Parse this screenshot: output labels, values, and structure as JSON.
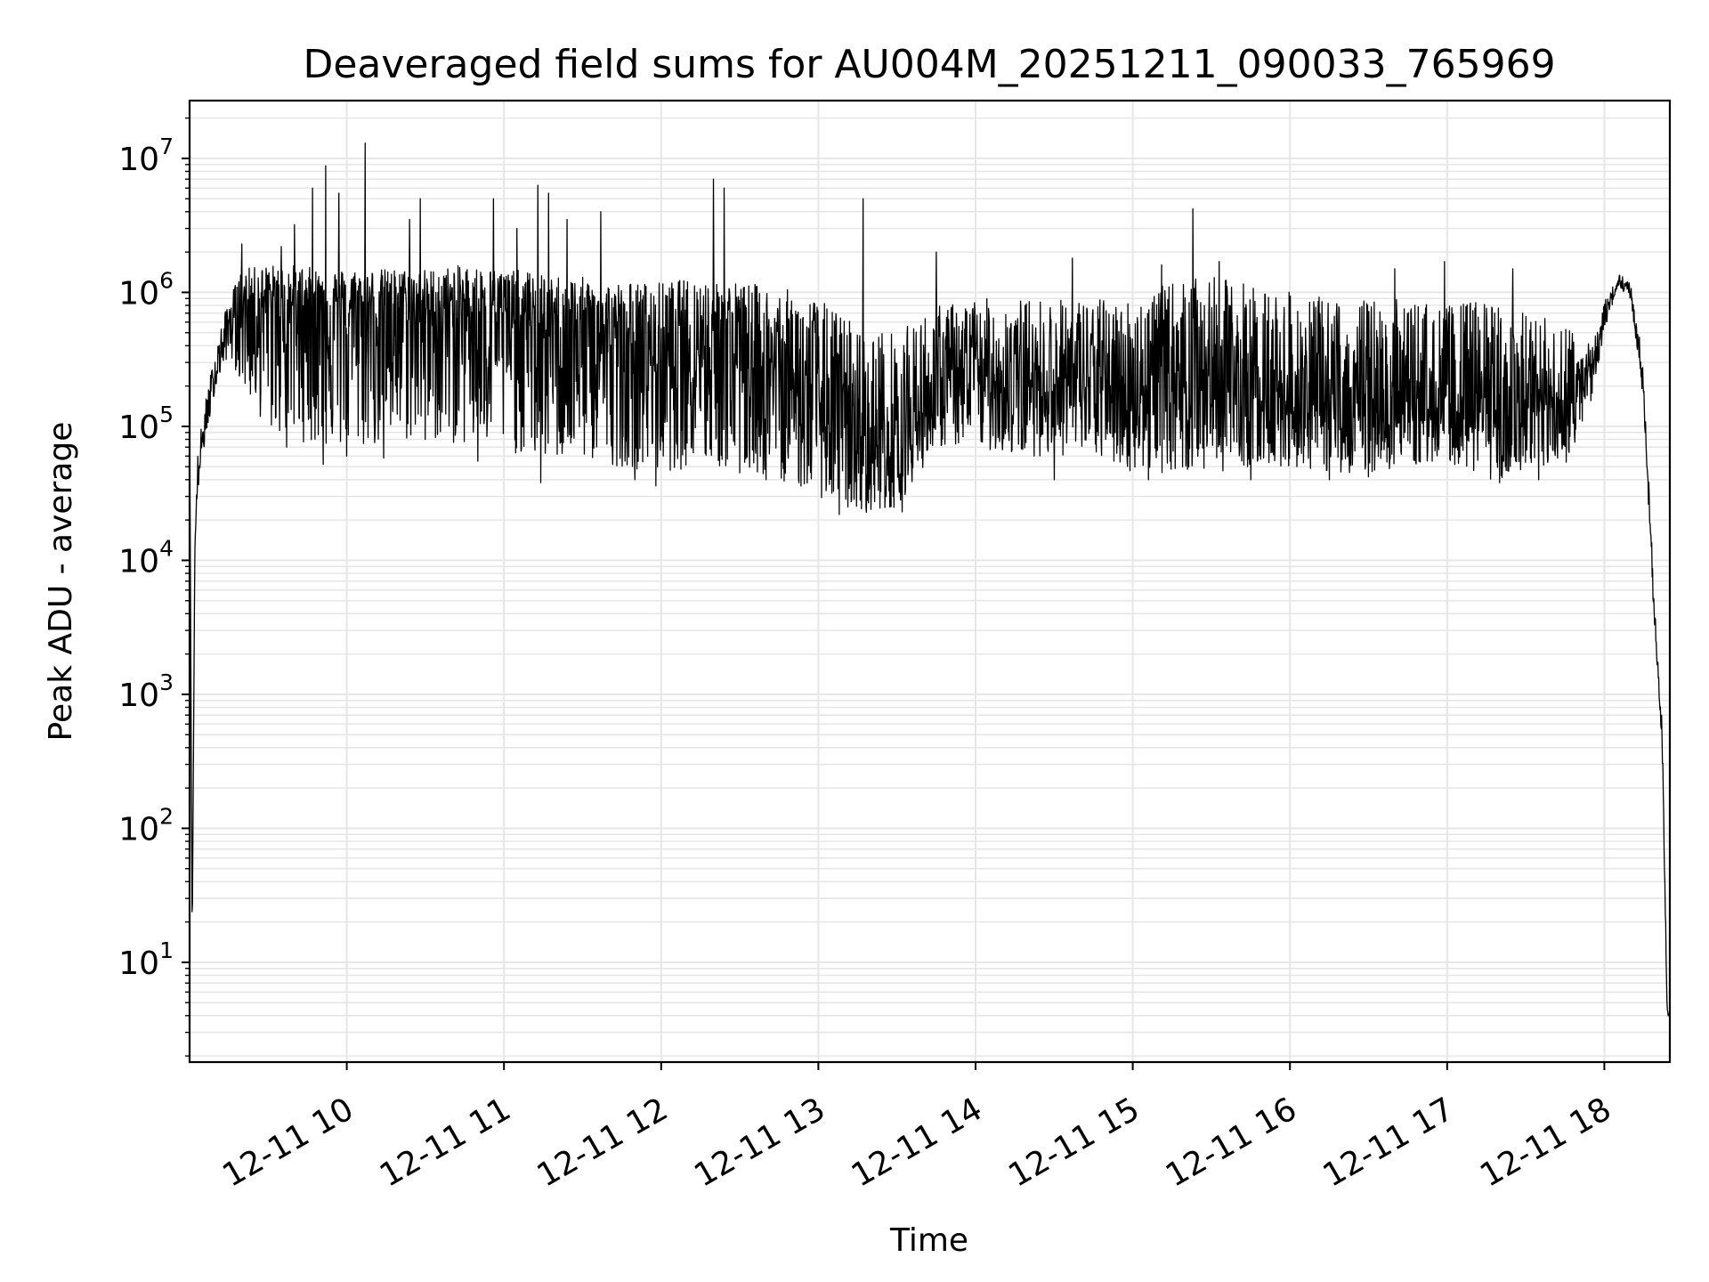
{
  "chart_data": {
    "type": "line",
    "title": "Deaveraged field sums for AU004M_20251211_090033_765969",
    "xlabel": "Time",
    "ylabel": "Peak ADU - average",
    "yscale": "log",
    "ylim": [
      1.8,
      27000000
    ],
    "xlim": [
      "2025-12-11 09:00",
      "2025-12-11 18:25"
    ],
    "grid": true,
    "line_color": "#000000",
    "grid_color": "#e6e6e6",
    "x_ticks": [
      {
        "t": "2025-12-11 10:00",
        "label": "12-11 10"
      },
      {
        "t": "2025-12-11 11:00",
        "label": "12-11 11"
      },
      {
        "t": "2025-12-11 12:00",
        "label": "12-11 12"
      },
      {
        "t": "2025-12-11 13:00",
        "label": "12-11 13"
      },
      {
        "t": "2025-12-11 14:00",
        "label": "12-11 14"
      },
      {
        "t": "2025-12-11 15:00",
        "label": "12-11 15"
      },
      {
        "t": "2025-12-11 16:00",
        "label": "12-11 16"
      },
      {
        "t": "2025-12-11 17:00",
        "label": "12-11 17"
      },
      {
        "t": "2025-12-11 18:00",
        "label": "12-11 18"
      }
    ],
    "y_ticks": [
      {
        "value": 10,
        "base": "10",
        "exp": "1"
      },
      {
        "value": 100,
        "base": "10",
        "exp": "2"
      },
      {
        "value": 1000,
        "base": "10",
        "exp": "3"
      },
      {
        "value": 10000,
        "base": "10",
        "exp": "4"
      },
      {
        "value": 100000,
        "base": "10",
        "exp": "5"
      },
      {
        "value": 1000000,
        "base": "10",
        "exp": "6"
      },
      {
        "value": 10000000,
        "base": "10",
        "exp": "7"
      }
    ],
    "series": [
      {
        "x": [
          "2025-12-11 09:00",
          "2025-12-11 09:01",
          "2025-12-11 09:02",
          "2025-12-11 09:03",
          "2025-12-11 09:05",
          "2025-12-11 09:10",
          "2025-12-11 09:15",
          "2025-12-11 09:20",
          "2025-12-11 09:30",
          "2025-12-11 09:40",
          "2025-12-11 09:50",
          "2025-12-11 10:00",
          "2025-12-11 10:15",
          "2025-12-11 10:30",
          "2025-12-11 10:45",
          "2025-12-11 11:00",
          "2025-12-11 11:15",
          "2025-12-11 11:30",
          "2025-12-11 11:45",
          "2025-12-11 12:00",
          "2025-12-11 12:15",
          "2025-12-11 12:30",
          "2025-12-11 12:45",
          "2025-12-11 13:00",
          "2025-12-11 13:15",
          "2025-12-11 13:30",
          "2025-12-11 13:45",
          "2025-12-11 14:00",
          "2025-12-11 14:15",
          "2025-12-11 14:30",
          "2025-12-11 14:45",
          "2025-12-11 15:00",
          "2025-12-11 15:15",
          "2025-12-11 15:30",
          "2025-12-11 15:45",
          "2025-12-11 16:00",
          "2025-12-11 16:15",
          "2025-12-11 16:30",
          "2025-12-11 16:45",
          "2025-12-11 17:00",
          "2025-12-11 17:15",
          "2025-12-11 17:30",
          "2025-12-11 17:45",
          "2025-12-11 17:55",
          "2025-12-11 18:00",
          "2025-12-11 18:05",
          "2025-12-11 18:10",
          "2025-12-11 18:15",
          "2025-12-11 18:18",
          "2025-12-11 18:20",
          "2025-12-11 18:22",
          "2025-12-11 18:24",
          "2025-12-11 18:25"
        ],
        "median": [
          130000,
          14,
          12000,
          40000,
          80000,
          250000,
          600000,
          800000,
          900000,
          850000,
          800000,
          750000,
          800000,
          700000,
          800000,
          700000,
          500000,
          500000,
          400000,
          350000,
          500000,
          400000,
          250000,
          150000,
          80000,
          70000,
          180000,
          250000,
          200000,
          220000,
          200000,
          180000,
          250000,
          220000,
          180000,
          150000,
          120000,
          130000,
          150000,
          130000,
          140000,
          120000,
          130000,
          250000,
          600000,
          1200000,
          1000000,
          200000,
          10000,
          2000,
          500,
          4,
          4
        ],
        "low": [
          130000,
          14,
          12000,
          30000,
          60000,
          200000,
          350000,
          200000,
          90000,
          80000,
          70000,
          65000,
          70000,
          80000,
          70000,
          65000,
          55000,
          55000,
          50000,
          45000,
          50000,
          45000,
          40000,
          30000,
          22000,
          25000,
          70000,
          70000,
          60000,
          60000,
          60000,
          45000,
          45000,
          45000,
          50000,
          50000,
          45000,
          45000,
          50000,
          55000,
          40000,
          40000,
          50000,
          150000,
          500000,
          1100000,
          900000,
          150000,
          8000,
          1500,
          400,
          4,
          4
        ],
        "high": [
          130000,
          14,
          12000,
          60000,
          120000,
          400000,
          900000,
          1500000,
          1600000,
          1600000,
          1500000,
          1500000,
          1500000,
          1500000,
          1600000,
          1500000,
          1400000,
          1300000,
          1200000,
          1200000,
          1300000,
          1200000,
          1100000,
          900000,
          600000,
          500000,
          800000,
          900000,
          900000,
          900000,
          900000,
          900000,
          1200000,
          1300000,
          1200000,
          1000000,
          900000,
          900000,
          900000,
          800000,
          900000,
          700000,
          600000,
          400000,
          900000,
          1400000,
          1200000,
          300000,
          15000,
          2500,
          700,
          5,
          4
        ]
      }
    ],
    "spikes": [
      {
        "t": "2025-12-11 09:20",
        "v": 2300000
      },
      {
        "t": "2025-12-11 09:35",
        "v": 2200000
      },
      {
        "t": "2025-12-11 09:40",
        "v": 3200000
      },
      {
        "t": "2025-12-11 09:47",
        "v": 6000000
      },
      {
        "t": "2025-12-11 09:52",
        "v": 8800000
      },
      {
        "t": "2025-12-11 09:57",
        "v": 5500000
      },
      {
        "t": "2025-12-11 10:07",
        "v": 13000000
      },
      {
        "t": "2025-12-11 10:24",
        "v": 3500000
      },
      {
        "t": "2025-12-11 10:28",
        "v": 5000000
      },
      {
        "t": "2025-12-11 10:56",
        "v": 5000000
      },
      {
        "t": "2025-12-11 11:05",
        "v": 3000000
      },
      {
        "t": "2025-12-11 11:13",
        "v": 6300000
      },
      {
        "t": "2025-12-11 11:17",
        "v": 5500000
      },
      {
        "t": "2025-12-11 11:24",
        "v": 3500000
      },
      {
        "t": "2025-12-11 11:37",
        "v": 4000000
      },
      {
        "t": "2025-12-11 11:50",
        "v": 2500000
      },
      {
        "t": "2025-12-11 12:20",
        "v": 7000000
      },
      {
        "t": "2025-12-11 12:24",
        "v": 6000000
      },
      {
        "t": "2025-12-11 13:17",
        "v": 5000000
      },
      {
        "t": "2025-12-11 13:45",
        "v": 2000000
      },
      {
        "t": "2025-12-11 14:37",
        "v": 1800000
      },
      {
        "t": "2025-12-11 15:11",
        "v": 1600000
      },
      {
        "t": "2025-12-11 15:23",
        "v": 4200000
      },
      {
        "t": "2025-12-11 15:33",
        "v": 1700000
      },
      {
        "t": "2025-12-11 16:30",
        "v": 1600000
      },
      {
        "t": "2025-12-11 16:40",
        "v": 1500000
      },
      {
        "t": "2025-12-11 16:59",
        "v": 1700000
      },
      {
        "t": "2025-12-11 17:25",
        "v": 1500000
      }
    ],
    "dips": [
      {
        "t": "2025-12-11 09:37",
        "v": 70000
      },
      {
        "t": "2025-12-11 09:51",
        "v": 52000
      },
      {
        "t": "2025-12-11 10:00",
        "v": 60000
      },
      {
        "t": "2025-12-11 10:14",
        "v": 58000
      },
      {
        "t": "2025-12-11 10:30",
        "v": 80000
      },
      {
        "t": "2025-12-11 10:50",
        "v": 55000
      },
      {
        "t": "2025-12-11 11:14",
        "v": 38000
      },
      {
        "t": "2025-12-11 11:50",
        "v": 40000
      },
      {
        "t": "2025-12-11 11:58",
        "v": 36000
      },
      {
        "t": "2025-12-11 12:30",
        "v": 45000
      },
      {
        "t": "2025-12-11 12:40",
        "v": 40000
      },
      {
        "t": "2025-12-11 13:08",
        "v": 22000
      },
      {
        "t": "2025-12-11 13:20",
        "v": 24000
      },
      {
        "t": "2025-12-11 13:32",
        "v": 23000
      },
      {
        "t": "2025-12-11 14:30",
        "v": 40000
      },
      {
        "t": "2025-12-11 15:06",
        "v": 40000
      },
      {
        "t": "2025-12-11 15:45",
        "v": 40000
      },
      {
        "t": "2025-12-11 16:15",
        "v": 40000
      },
      {
        "t": "2025-12-11 16:30",
        "v": 42000
      },
      {
        "t": "2025-12-11 17:20",
        "v": 38000
      },
      {
        "t": "2025-12-11 17:35",
        "v": 40000
      }
    ]
  }
}
